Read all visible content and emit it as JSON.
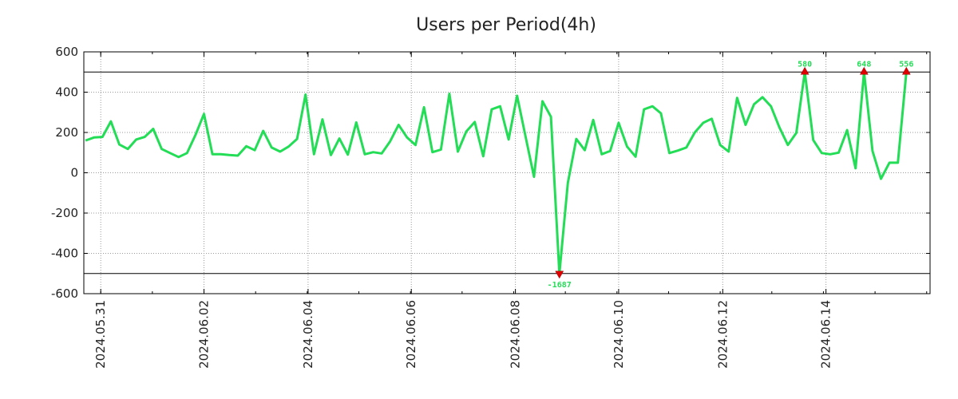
{
  "chart_data": {
    "type": "line",
    "title": "Users per Period(4h)",
    "xlabel": "",
    "ylabel": "",
    "ylim": [
      -600,
      600
    ],
    "xlim": [
      -0.2,
      99.8
    ],
    "y_ticks": [
      600,
      400,
      200,
      0,
      -200,
      -400,
      -600
    ],
    "y_tick_labels": [
      "600",
      "400",
      "200",
      "0",
      "-200",
      "-400",
      "-600"
    ],
    "x_ticks": [
      {
        "x": 1.8,
        "label": "2024.05.31"
      },
      {
        "x": 14,
        "label": "2024.06.02"
      },
      {
        "x": 26.3,
        "label": "2024.06.04"
      },
      {
        "x": 38.5,
        "label": "2024.06.06"
      },
      {
        "x": 50.8,
        "label": "2024.06.08"
      },
      {
        "x": 63,
        "label": "2024.06.10"
      },
      {
        "x": 75.3,
        "label": "2024.06.12"
      },
      {
        "x": 87.5,
        "label": "2024.06.14"
      }
    ],
    "grid": true,
    "clip_lines": [
      500,
      -500
    ],
    "series": [
      {
        "name": "Users",
        "color": "#22dd55",
        "values": [
          160,
          175,
          178,
          255,
          140,
          118,
          165,
          178,
          218,
          118,
          98,
          78,
          98,
          188,
          292,
          92,
          92,
          88,
          85,
          132,
          112,
          208,
          125,
          105,
          130,
          168,
          388,
          92,
          265,
          88,
          170,
          90,
          250,
          92,
          102,
          96,
          156,
          238,
          175,
          138,
          325,
          102,
          115,
          392,
          105,
          205,
          252,
          82,
          315,
          330,
          165,
          382,
          180,
          -20,
          355,
          278,
          -1687,
          -50,
          168,
          112,
          262,
          92,
          108,
          248,
          130,
          80,
          315,
          330,
          295,
          98,
          110,
          125,
          200,
          248,
          268,
          138,
          105,
          372,
          238,
          340,
          375,
          330,
          225,
          138,
          198,
          580,
          162,
          98,
          92,
          100,
          212,
          22,
          648,
          108,
          -30,
          50,
          50,
          556
        ]
      }
    ],
    "annotations": [
      {
        "index": 56,
        "label": "-1687",
        "direction": "down",
        "color": "#22dd55"
      },
      {
        "index": 85,
        "label": "580",
        "direction": "up",
        "color": "#22dd55"
      },
      {
        "index": 92,
        "label": "648",
        "direction": "up",
        "color": "#22dd55"
      },
      {
        "index": 97,
        "label": "556",
        "direction": "up",
        "color": "#22dd55"
      }
    ]
  }
}
